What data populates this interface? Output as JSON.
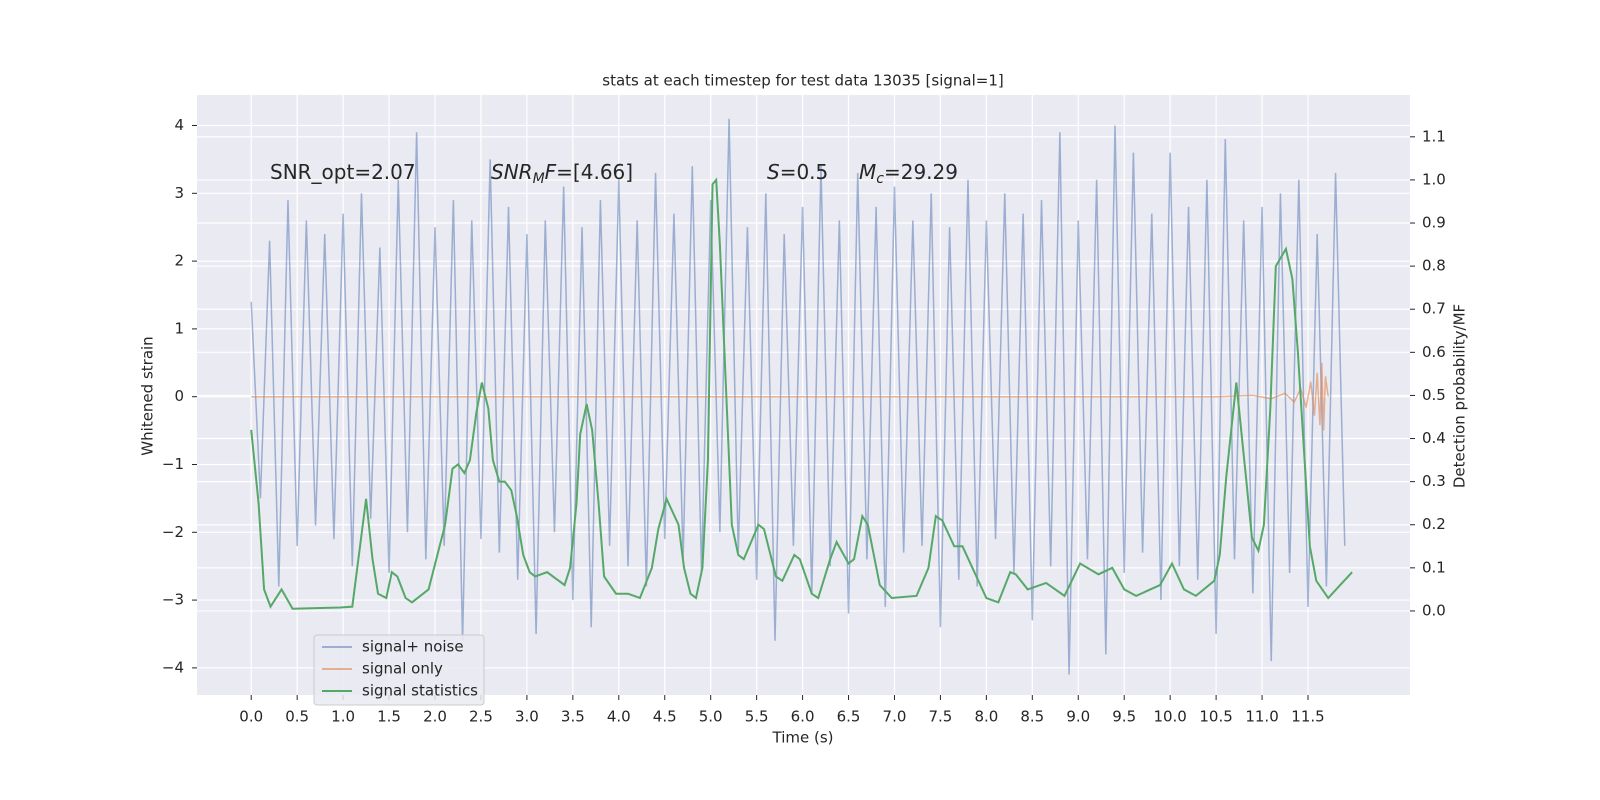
{
  "chart_data": {
    "type": "line",
    "title": "stats at each timestep for test data 13035 [signal=1]",
    "xlabel": "Time (s)",
    "ylabel": "Whitened strain",
    "y2label": "Detection probability/MF",
    "background": "#eaeaf2",
    "grid": true,
    "xlim": [
      -0.59,
      12.61
    ],
    "ylim": [
      -4.4,
      4.45
    ],
    "y2lim": [
      -0.195,
      1.197
    ],
    "xticks": [
      {
        "value": 0,
        "label": "0.0"
      },
      {
        "value": 0.5,
        "label": "0.5"
      },
      {
        "value": 1,
        "label": "1.0"
      },
      {
        "value": 1.5,
        "label": "1.5"
      },
      {
        "value": 2,
        "label": "2.0"
      },
      {
        "value": 2.5,
        "label": "2.5"
      },
      {
        "value": 3,
        "label": "3.0"
      },
      {
        "value": 3.5,
        "label": "3.5"
      },
      {
        "value": 4,
        "label": "4.0"
      },
      {
        "value": 4.5,
        "label": "4.5"
      },
      {
        "value": 5,
        "label": "5.0"
      },
      {
        "value": 5.5,
        "label": "5.5"
      },
      {
        "value": 6,
        "label": "6.0"
      },
      {
        "value": 6.5,
        "label": "6.5"
      },
      {
        "value": 7,
        "label": "7.0"
      },
      {
        "value": 7.5,
        "label": "7.5"
      },
      {
        "value": 8,
        "label": "8.0"
      },
      {
        "value": 8.5,
        "label": "8.5"
      },
      {
        "value": 9,
        "label": "9.0"
      },
      {
        "value": 9.5,
        "label": "9.5"
      },
      {
        "value": 10,
        "label": "10.0"
      },
      {
        "value": 10.5,
        "label": "10.5"
      },
      {
        "value": 11,
        "label": "11.0"
      },
      {
        "value": 11.5,
        "label": "11.5"
      }
    ],
    "yticks": [
      {
        "value": -4,
        "label": "−4"
      },
      {
        "value": -3,
        "label": "−3"
      },
      {
        "value": -2,
        "label": "−2"
      },
      {
        "value": -1,
        "label": "−1"
      },
      0,
      1,
      2,
      3,
      4
    ],
    "y2ticks": [
      {
        "value": 0,
        "label": "0.0"
      },
      {
        "value": 0.1,
        "label": "0.1"
      },
      {
        "value": 0.2,
        "label": "0.2"
      },
      {
        "value": 0.3,
        "label": "0.3"
      },
      {
        "value": 0.4,
        "label": "0.4"
      },
      {
        "value": 0.5,
        "label": "0.5"
      },
      {
        "value": 0.6,
        "label": "0.6"
      },
      {
        "value": 0.7,
        "label": "0.7"
      },
      {
        "value": 0.8,
        "label": "0.8"
      },
      {
        "value": 0.9,
        "label": "0.9"
      },
      {
        "value": 1,
        "label": "1.0"
      },
      {
        "value": 1.1,
        "label": "1.1"
      }
    ],
    "annotations": [
      {
        "parts": [
          {
            "text": "SNR_opt=2.07"
          }
        ]
      },
      {
        "parts": [
          {
            "text": "SNR",
            "italic": true
          },
          {
            "text": "M",
            "italic": true,
            "sub": true
          },
          {
            "text": "F",
            "italic": true
          },
          {
            "text": "=[4.66]"
          }
        ]
      },
      {
        "parts": [
          {
            "text": "S",
            "italic": true
          },
          {
            "text": "=0.5"
          }
        ]
      },
      {
        "parts": [
          {
            "text": "M",
            "italic": true
          },
          {
            "text": "c",
            "italic": true,
            "sub": true
          },
          {
            "text": "=29.29"
          }
        ]
      }
    ],
    "series": [
      {
        "name": "signal+ noise",
        "color": "#4c72b0",
        "opacity": 0.5,
        "x": [
          0,
          0.1,
          0.2,
          0.3,
          0.4,
          0.5,
          0.6,
          0.7,
          0.8,
          0.9,
          1,
          1.1,
          1.2,
          1.3,
          1.4,
          1.5,
          1.6,
          1.7,
          1.8,
          1.9,
          2,
          2.1,
          2.2,
          2.3,
          2.4,
          2.5,
          2.6,
          2.7,
          2.8,
          2.9,
          3,
          3.1,
          3.2,
          3.3,
          3.4,
          3.5,
          3.6,
          3.7,
          3.8,
          3.9,
          4,
          4.1,
          4.2,
          4.3,
          4.4,
          4.5,
          4.6,
          4.7,
          4.8,
          4.9,
          5,
          5.1,
          5.2,
          5.3,
          5.4,
          5.5,
          5.6,
          5.7,
          5.8,
          5.9,
          6,
          6.1,
          6.2,
          6.3,
          6.4,
          6.5,
          6.6,
          6.7,
          6.8,
          6.9,
          7,
          7.1,
          7.2,
          7.3,
          7.4,
          7.5,
          7.6,
          7.7,
          7.8,
          7.9,
          8,
          8.1,
          8.2,
          8.3,
          8.4,
          8.5,
          8.6,
          8.7,
          8.8,
          8.9,
          9,
          9.1,
          9.2,
          9.3,
          9.4,
          9.5,
          9.6,
          9.7,
          9.8,
          9.9,
          10,
          10.1,
          10.2,
          10.3,
          10.4,
          10.5,
          10.6,
          10.7,
          10.8,
          10.9,
          11,
          11.1,
          11.2,
          11.3,
          11.4,
          11.5,
          11.6,
          11.7,
          11.8,
          11.9
        ],
        "values": [
          1.4,
          -1.5,
          2.3,
          -2.8,
          2.9,
          -2.2,
          2.6,
          -1.9,
          2.4,
          -2.1,
          2.7,
          -2.5,
          3.0,
          -1.8,
          2.2,
          -2.6,
          3.2,
          -2.0,
          3.9,
          -2.4,
          2.5,
          -2.2,
          2.9,
          -3.6,
          2.6,
          -2.1,
          3.5,
          -2.3,
          2.8,
          -2.7,
          2.4,
          -3.5,
          2.6,
          -2.0,
          3.1,
          -3.0,
          2.5,
          -3.4,
          2.9,
          -2.2,
          3.2,
          -2.5,
          2.6,
          -2.8,
          3.3,
          -2.1,
          2.7,
          -2.4,
          3.4,
          -2.6,
          2.9,
          -2.0,
          4.1,
          -2.3,
          2.5,
          -2.7,
          3.0,
          -3.6,
          2.4,
          -2.2,
          2.8,
          -2.9,
          3.4,
          -2.5,
          2.6,
          -3.2,
          3.3,
          -2.4,
          2.8,
          -3.1,
          3.1,
          -2.3,
          2.6,
          -2.2,
          3.0,
          -3.4,
          2.5,
          -2.7,
          3.2,
          -2.8,
          2.6,
          -2.1,
          3.0,
          -2.6,
          2.7,
          -3.3,
          2.9,
          -2.5,
          3.9,
          -4.1,
          2.6,
          -2.4,
          3.2,
          -3.8,
          4.0,
          -2.6,
          3.6,
          -2.3,
          2.7,
          -3.0,
          3.6,
          -2.5,
          2.8,
          -2.7,
          3.2,
          -3.5,
          3.8,
          -2.4,
          2.6,
          -2.9,
          2.8,
          -3.9,
          3.0,
          -2.6,
          3.2,
          -3.1,
          2.4,
          -2.8,
          3.3,
          -2.2
        ]
      },
      {
        "name": "signal only",
        "color": "#dd8452",
        "opacity": 0.6,
        "x": [
          0,
          10.5,
          10.9,
          11.1,
          11.25,
          11.35,
          11.42,
          11.48,
          11.53,
          11.57,
          11.6,
          11.63,
          11.65,
          11.67,
          11.69,
          11.72
        ],
        "values": [
          0,
          0,
          0.02,
          -0.03,
          0.05,
          -0.08,
          0.12,
          -0.16,
          0.22,
          -0.28,
          0.35,
          -0.42,
          0.5,
          -0.5,
          0.3,
          0
        ]
      },
      {
        "name": "signal statistics",
        "color": "#55a868",
        "opacity": 1,
        "axis": "y2",
        "x": [
          0,
          0.08,
          0.14,
          0.21,
          0.33,
          0.45,
          0.97,
          1.1,
          1.25,
          1.32,
          1.38,
          1.47,
          1.53,
          1.59,
          1.68,
          1.75,
          1.93,
          2.11,
          2.19,
          2.25,
          2.32,
          2.38,
          2.45,
          2.51,
          2.58,
          2.63,
          2.7,
          2.76,
          2.83,
          2.89,
          2.96,
          3.03,
          3.09,
          3.22,
          3.41,
          3.47,
          3.54,
          3.58,
          3.65,
          3.71,
          3.78,
          3.84,
          3.97,
          4.1,
          4.23,
          4.36,
          4.43,
          4.52,
          4.65,
          4.71,
          4.78,
          4.84,
          4.91,
          4.97,
          5.02,
          5.06,
          5.1,
          5.17,
          5.23,
          5.3,
          5.36,
          5.52,
          5.58,
          5.71,
          5.78,
          5.91,
          5.97,
          6.1,
          6.17,
          6.3,
          6.37,
          6.5,
          6.56,
          6.65,
          6.71,
          6.84,
          6.97,
          7.24,
          7.37,
          7.45,
          7.52,
          7.65,
          7.74,
          7.87,
          8,
          8.13,
          8.26,
          8.32,
          8.45,
          8.65,
          8.85,
          9.02,
          9.22,
          9.37,
          9.5,
          9.63,
          9.89,
          10.02,
          10.15,
          10.28,
          10.48,
          10.54,
          10.61,
          10.72,
          10.83,
          10.89,
          10.96,
          11.02,
          11.09,
          11.15,
          11.26,
          11.33,
          11.39,
          11.46,
          11.52,
          11.59,
          11.72,
          11.85,
          11.98
        ],
        "values": [
          0.42,
          0.25,
          0.05,
          0.01,
          0.05,
          0.005,
          0.008,
          0.01,
          0.26,
          0.12,
          0.04,
          0.03,
          0.09,
          0.08,
          0.03,
          0.02,
          0.05,
          0.2,
          0.33,
          0.34,
          0.32,
          0.35,
          0.46,
          0.53,
          0.47,
          0.35,
          0.3,
          0.3,
          0.28,
          0.22,
          0.13,
          0.09,
          0.08,
          0.09,
          0.06,
          0.1,
          0.25,
          0.41,
          0.48,
          0.42,
          0.25,
          0.08,
          0.04,
          0.04,
          0.03,
          0.1,
          0.19,
          0.26,
          0.2,
          0.1,
          0.04,
          0.03,
          0.1,
          0.35,
          0.99,
          1.0,
          0.85,
          0.5,
          0.2,
          0.13,
          0.12,
          0.2,
          0.19,
          0.08,
          0.07,
          0.13,
          0.12,
          0.04,
          0.03,
          0.12,
          0.16,
          0.11,
          0.12,
          0.22,
          0.2,
          0.06,
          0.03,
          0.035,
          0.1,
          0.22,
          0.21,
          0.15,
          0.15,
          0.09,
          0.03,
          0.02,
          0.09,
          0.085,
          0.05,
          0.065,
          0.035,
          0.11,
          0.085,
          0.1,
          0.05,
          0.035,
          0.06,
          0.11,
          0.05,
          0.035,
          0.07,
          0.13,
          0.31,
          0.53,
          0.3,
          0.17,
          0.14,
          0.2,
          0.47,
          0.8,
          0.84,
          0.77,
          0.6,
          0.36,
          0.15,
          0.07,
          0.03,
          0.06,
          0.09
        ]
      }
    ]
  }
}
